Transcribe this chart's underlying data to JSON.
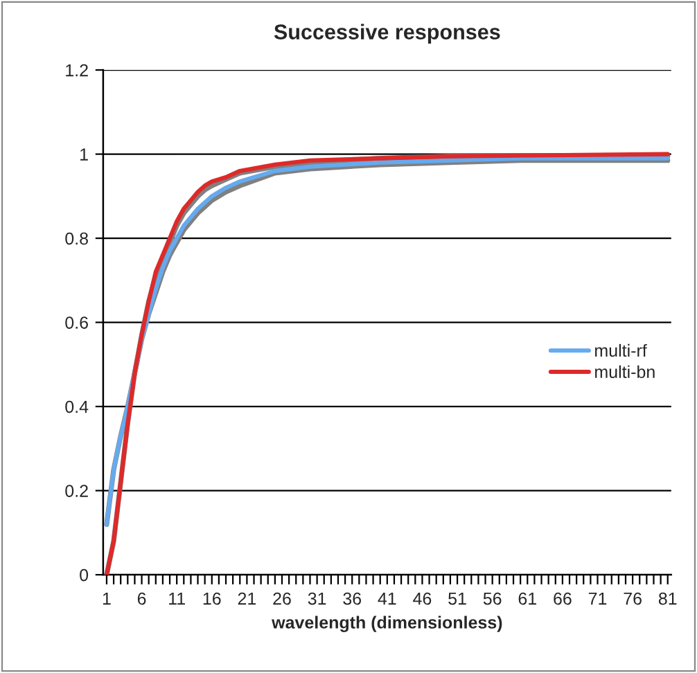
{
  "chart_data": {
    "type": "line",
    "title": "Successive responses",
    "xlabel": "wavelength (dimensionless)",
    "xlim": [
      0.5,
      81.5
    ],
    "xticks": [
      1,
      {
        "value": 2,
        "label": null
      },
      {
        "value": 3,
        "label": null
      },
      {
        "value": 4,
        "label": null
      },
      {
        "value": 5,
        "label": null
      },
      6,
      {
        "value": 7,
        "label": null
      },
      {
        "value": 8,
        "label": null
      },
      {
        "value": 9,
        "label": null
      },
      {
        "value": 10,
        "label": null
      },
      11,
      {
        "value": 12,
        "label": null
      },
      {
        "value": 13,
        "label": null
      },
      {
        "value": 14,
        "label": null
      },
      {
        "value": 15,
        "label": null
      },
      16,
      {
        "value": 17,
        "label": null
      },
      {
        "value": 18,
        "label": null
      },
      {
        "value": 19,
        "label": null
      },
      {
        "value": 20,
        "label": null
      },
      21,
      {
        "value": 22,
        "label": null
      },
      {
        "value": 23,
        "label": null
      },
      {
        "value": 24,
        "label": null
      },
      {
        "value": 25,
        "label": null
      },
      26,
      {
        "value": 27,
        "label": null
      },
      {
        "value": 28,
        "label": null
      },
      {
        "value": 29,
        "label": null
      },
      {
        "value": 30,
        "label": null
      },
      31,
      {
        "value": 32,
        "label": null
      },
      {
        "value": 33,
        "label": null
      },
      {
        "value": 34,
        "label": null
      },
      {
        "value": 35,
        "label": null
      },
      36,
      {
        "value": 37,
        "label": null
      },
      {
        "value": 38,
        "label": null
      },
      {
        "value": 39,
        "label": null
      },
      {
        "value": 40,
        "label": null
      },
      41,
      {
        "value": 42,
        "label": null
      },
      {
        "value": 43,
        "label": null
      },
      {
        "value": 44,
        "label": null
      },
      {
        "value": 45,
        "label": null
      },
      46,
      {
        "value": 47,
        "label": null
      },
      {
        "value": 48,
        "label": null
      },
      {
        "value": 49,
        "label": null
      },
      {
        "value": 50,
        "label": null
      },
      51,
      {
        "value": 52,
        "label": null
      },
      {
        "value": 53,
        "label": null
      },
      {
        "value": 54,
        "label": null
      },
      {
        "value": 55,
        "label": null
      },
      56,
      {
        "value": 57,
        "label": null
      },
      {
        "value": 58,
        "label": null
      },
      {
        "value": 59,
        "label": null
      },
      {
        "value": 60,
        "label": null
      },
      61,
      {
        "value": 62,
        "label": null
      },
      {
        "value": 63,
        "label": null
      },
      {
        "value": 64,
        "label": null
      },
      {
        "value": 65,
        "label": null
      },
      66,
      {
        "value": 67,
        "label": null
      },
      {
        "value": 68,
        "label": null
      },
      {
        "value": 69,
        "label": null
      },
      {
        "value": 70,
        "label": null
      },
      71,
      {
        "value": 72,
        "label": null
      },
      {
        "value": 73,
        "label": null
      },
      {
        "value": 74,
        "label": null
      },
      {
        "value": 75,
        "label": null
      },
      76,
      {
        "value": 77,
        "label": null
      },
      {
        "value": 78,
        "label": null
      },
      {
        "value": 79,
        "label": null
      },
      {
        "value": 80,
        "label": null
      },
      81
    ],
    "ylim": [
      0,
      1.2
    ],
    "yticks": [
      0,
      0.2,
      0.4,
      0.6,
      0.8,
      1,
      1.2
    ],
    "grid": "y",
    "legend": "right",
    "line_style": "solid",
    "series": [
      {
        "color": "#808080",
        "x": [
          1,
          2,
          3,
          4,
          5,
          6,
          7,
          8,
          9,
          10,
          11,
          12,
          13,
          14,
          15,
          16,
          18,
          20,
          25,
          30,
          40,
          50,
          60,
          81
        ],
        "values": [
          0.12,
          0.25,
          0.33,
          0.4,
          0.48,
          0.56,
          0.62,
          0.67,
          0.72,
          0.76,
          0.79,
          0.82,
          0.84,
          0.86,
          0.875,
          0.89,
          0.91,
          0.925,
          0.955,
          0.965,
          0.975,
          0.98,
          0.985,
          0.985
        ]
      },
      {
        "color": "#808080",
        "x": [
          1,
          2,
          3,
          4,
          5,
          6,
          7,
          8,
          9,
          10,
          11,
          12,
          13,
          14,
          15,
          16,
          18,
          20,
          25,
          30,
          40,
          50,
          81
        ],
        "values": [
          0.0,
          0.08,
          0.22,
          0.36,
          0.48,
          0.57,
          0.65,
          0.71,
          0.75,
          0.79,
          0.83,
          0.86,
          0.88,
          0.9,
          0.915,
          0.925,
          0.94,
          0.955,
          0.97,
          0.98,
          0.99,
          0.995,
          0.995
        ]
      },
      {
        "name": "multi-rf",
        "color": "#66aaee",
        "x": [
          1,
          2,
          3,
          4,
          5,
          6,
          7,
          8,
          9,
          10,
          11,
          12,
          13,
          14,
          15,
          16,
          18,
          20,
          25,
          30,
          40,
          50,
          60,
          81
        ],
        "values": [
          0.12,
          0.25,
          0.33,
          0.4,
          0.48,
          0.56,
          0.62,
          0.68,
          0.73,
          0.77,
          0.8,
          0.83,
          0.85,
          0.87,
          0.885,
          0.9,
          0.92,
          0.935,
          0.96,
          0.97,
          0.98,
          0.985,
          0.99,
          0.99
        ]
      },
      {
        "name": "multi-bn",
        "color": "#dd2a2a",
        "x": [
          1,
          2,
          3,
          4,
          5,
          6,
          7,
          8,
          9,
          10,
          11,
          12,
          13,
          14,
          15,
          16,
          18,
          20,
          25,
          30,
          40,
          50,
          81
        ],
        "values": [
          0.0,
          0.08,
          0.22,
          0.36,
          0.48,
          0.57,
          0.65,
          0.72,
          0.76,
          0.8,
          0.84,
          0.87,
          0.89,
          0.91,
          0.925,
          0.935,
          0.945,
          0.96,
          0.975,
          0.985,
          0.99,
          0.995,
          1.0
        ]
      }
    ]
  }
}
